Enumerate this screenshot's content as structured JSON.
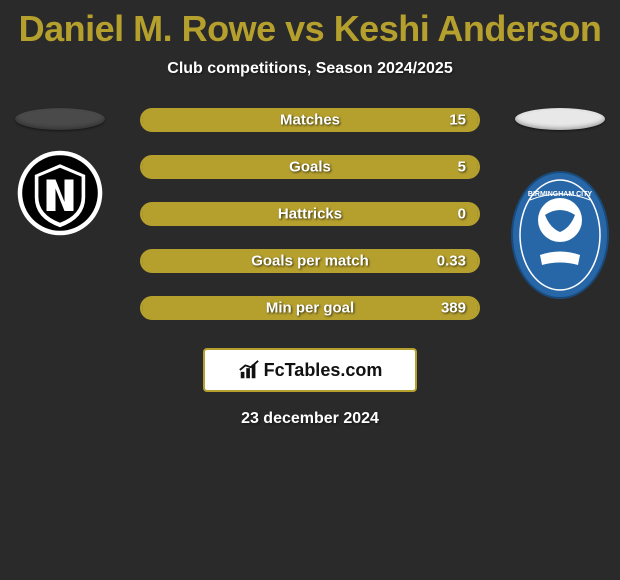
{
  "header": {
    "title_left": "Daniel M. Rowe",
    "title_vs": " vs ",
    "title_right": "Keshi Anderson",
    "title_color": "#b5a02e",
    "subtitle": "Club competitions, Season 2024/2025"
  },
  "left_team": {
    "oval_color": "#4a4a4a",
    "crest_bg": "#ffffff",
    "crest_inner": "#000000"
  },
  "right_team": {
    "oval_color": "#e8e8e8",
    "crest_primary": "#2767a8",
    "crest_secondary": "#ffffff"
  },
  "bars": {
    "border_color": "#b5a02e",
    "fill_color": "#b5a02e",
    "items": [
      {
        "label": "Matches",
        "value": "15",
        "fill_pct": 100
      },
      {
        "label": "Goals",
        "value": "5",
        "fill_pct": 100
      },
      {
        "label": "Hattricks",
        "value": "0",
        "fill_pct": 100
      },
      {
        "label": "Goals per match",
        "value": "0.33",
        "fill_pct": 100
      },
      {
        "label": "Min per goal",
        "value": "389",
        "fill_pct": 100
      }
    ]
  },
  "branding": {
    "text": "FcTables.com",
    "border_color": "#b5a02e"
  },
  "date": "23 december 2024",
  "background_color": "#2a2a2a"
}
